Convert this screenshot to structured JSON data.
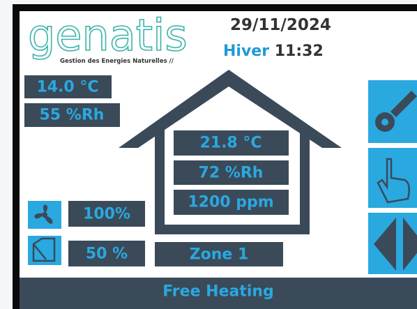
{
  "header": {
    "logo": "genatis",
    "tagline": "Gestion des Energies Naturelles //",
    "date": "29/11/2024",
    "season": "Hiver",
    "time": "11:32"
  },
  "outdoor": {
    "temperature": "14.0 °C",
    "humidity": "55 %Rh"
  },
  "indoor": {
    "temperature": "21.8 °C",
    "humidity": "72 %Rh",
    "co2": "1200 ppm"
  },
  "controls": {
    "fan": "100%",
    "window": "50 %",
    "zone": "Zone 1"
  },
  "status": "Free Heating"
}
